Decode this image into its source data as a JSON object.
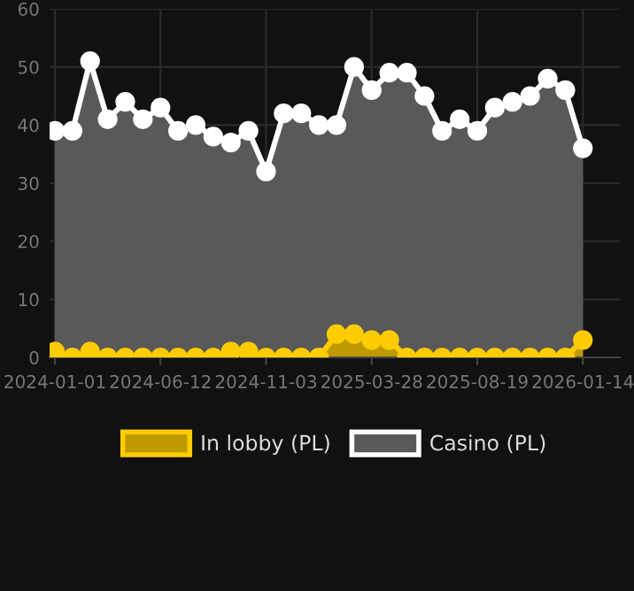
{
  "chart_data": {
    "type": "area",
    "categories": [
      "2024-01-01",
      null,
      null,
      null,
      null,
      null,
      "2024-06-12",
      null,
      null,
      null,
      null,
      null,
      "2024-11-03",
      null,
      null,
      null,
      null,
      null,
      "2025-03-28",
      null,
      null,
      null,
      null,
      null,
      "2025-08-19",
      null,
      null,
      null,
      null,
      null,
      "2026-01-14"
    ],
    "series": [
      {
        "name": "Casino (PL)",
        "color": "#ffffff",
        "values": [
          39,
          39,
          51,
          41,
          44,
          41,
          43,
          39,
          40,
          38,
          37,
          39,
          32,
          42,
          42,
          40,
          40,
          50,
          46,
          49,
          49,
          45,
          39,
          41,
          39,
          43,
          44,
          45,
          48,
          46,
          36
        ]
      },
      {
        "name": "In lobby (PL)",
        "color": "#ffcc00",
        "values": [
          1,
          0,
          1,
          0,
          0,
          0,
          0,
          0,
          0,
          0,
          1,
          1,
          0,
          0,
          0,
          0,
          4,
          4,
          3,
          3,
          0,
          0,
          0,
          0,
          0,
          0,
          0,
          0,
          0,
          0,
          3
        ]
      }
    ],
    "ylim": [
      0,
      60
    ],
    "yticks": [
      0,
      10,
      20,
      30,
      40,
      50,
      60
    ],
    "grid": true,
    "legend": "bottom",
    "marker": "circle"
  }
}
